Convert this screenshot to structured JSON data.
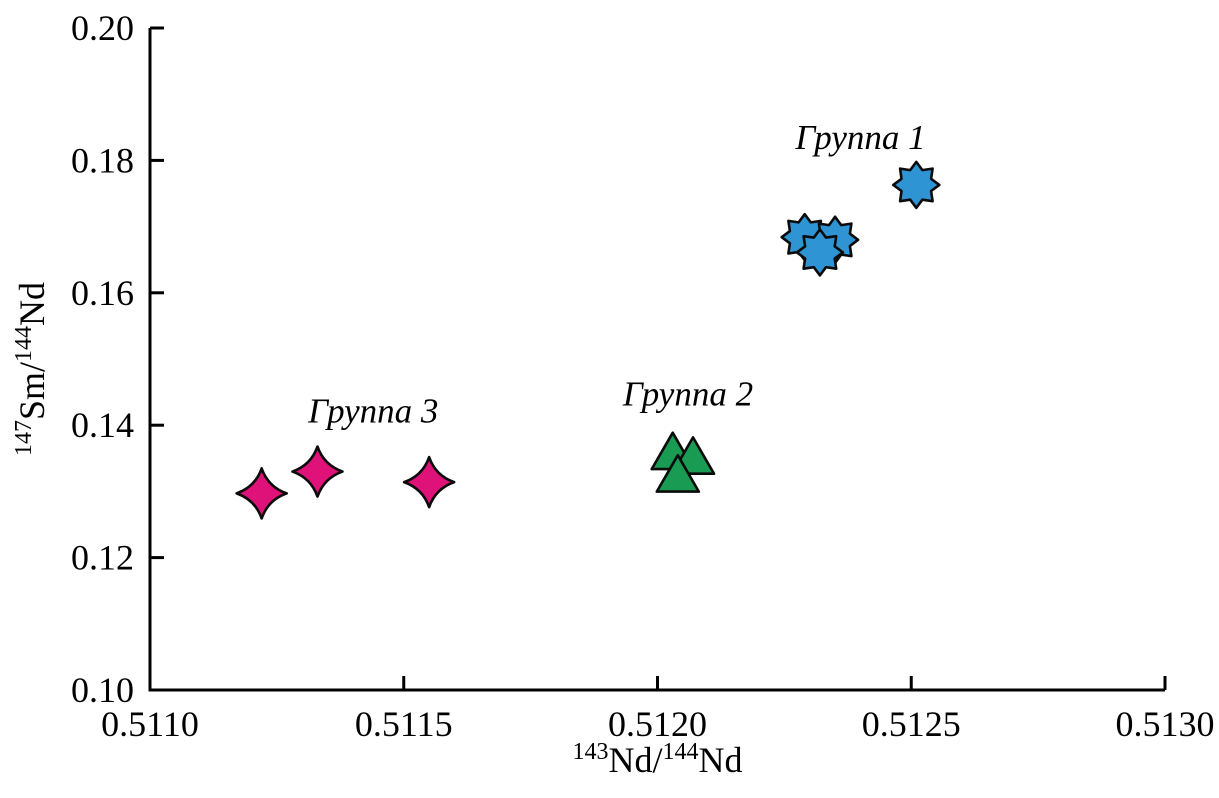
{
  "figure": {
    "background": "#ffffff",
    "axis_color": "#000000",
    "text_color": "#000000"
  },
  "chart_data": {
    "type": "scatter",
    "title": "",
    "xlabel": "143Nd/144Nd",
    "ylabel": "147Sm/144Nd",
    "xlabel_parts": [
      {
        "sup": "143"
      },
      {
        "t": "Nd/"
      },
      {
        "sup": "144"
      },
      {
        "t": "Nd"
      }
    ],
    "ylabel_parts": [
      {
        "sup": "147"
      },
      {
        "t": "Sm/"
      },
      {
        "sup": "144"
      },
      {
        "t": "Nd"
      }
    ],
    "xlim": [
      0.511,
      0.513
    ],
    "ylim": [
      0.1,
      0.2
    ],
    "xticks": [
      0.511,
      0.5115,
      0.512,
      0.5125,
      0.513
    ],
    "yticks": [
      0.1,
      0.12,
      0.14,
      0.16,
      0.18,
      0.2
    ],
    "xtick_labels": [
      "0.5110",
      "0.5115",
      "0.5120",
      "0.5125",
      "0.5130"
    ],
    "ytick_labels": [
      "0.10",
      "0.12",
      "0.14",
      "0.16",
      "0.18",
      "0.20"
    ],
    "grid": false,
    "legend_position": "inline-annotations",
    "series": [
      {
        "name": "Группа 1",
        "marker": "star8",
        "color": "#2E94D4",
        "outline": "#0b0b0b",
        "size": {
          "R": 23,
          "r": 16
        },
        "points": [
          [
            0.51229,
            0.1684
          ],
          [
            0.51235,
            0.168
          ],
          [
            0.51232,
            0.1661
          ],
          [
            0.51251,
            0.1763
          ]
        ],
        "label": {
          "text": "Группа 1",
          "x": 0.5124,
          "y": 0.1835
        }
      },
      {
        "name": "Группа 2",
        "marker": "triangle",
        "color": "#1A9B53",
        "outline": "#0b0b0b",
        "size": {
          "side": 42
        },
        "points": [
          [
            0.51203,
            0.1352
          ],
          [
            0.51207,
            0.1345
          ],
          [
            0.51204,
            0.1318
          ]
        ],
        "label": {
          "text": "Группа 2",
          "x": 0.51206,
          "y": 0.1448
        }
      },
      {
        "name": "Группа 3",
        "marker": "star4",
        "color": "#DE1279",
        "outline": "#0b0b0b",
        "size": {
          "R": 25,
          "waist": 6.5
        },
        "points": [
          [
            0.51122,
            0.1297
          ],
          [
            0.51133,
            0.133
          ],
          [
            0.51155,
            0.1314
          ]
        ],
        "label": {
          "text": "Группа 3",
          "x": 0.51144,
          "y": 0.1422
        }
      }
    ]
  }
}
